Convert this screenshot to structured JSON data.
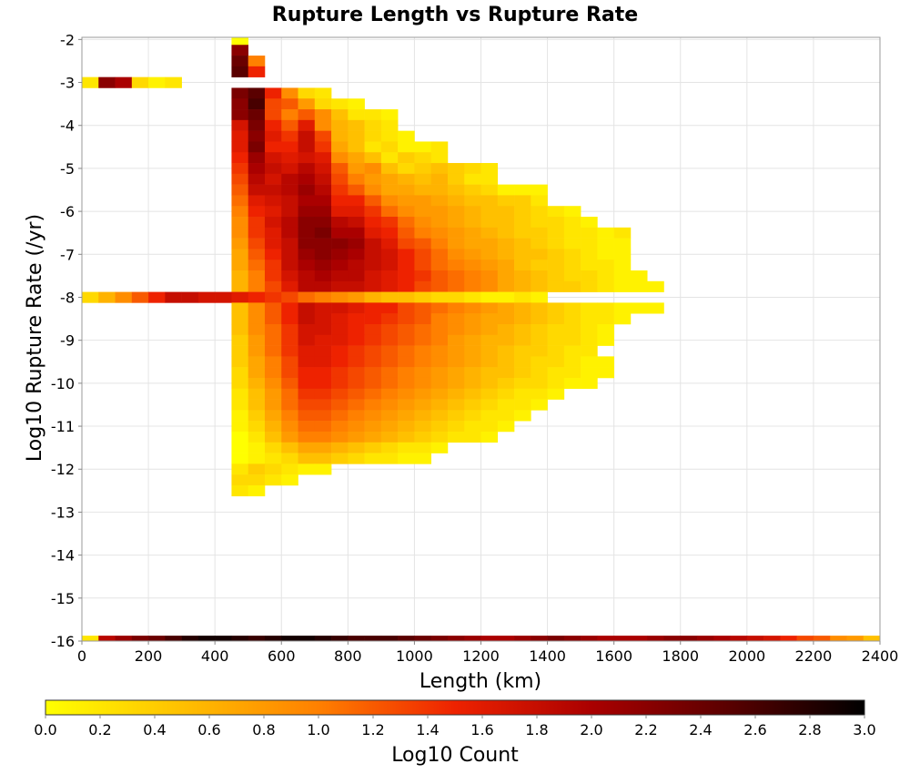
{
  "chart_data": {
    "type": "heatmap",
    "title": "Rupture Length vs Rupture Rate",
    "xlabel": "Length (km)",
    "ylabel": "Log10 Rupture Rate (/yr)",
    "xlim": [
      0,
      2400
    ],
    "ylim": [
      -16,
      -1.95
    ],
    "x_ticks": [
      "0",
      "200",
      "400",
      "600",
      "800",
      "1000",
      "1200",
      "1400",
      "1600",
      "1800",
      "2000",
      "2200",
      "2400"
    ],
    "y_ticks": [
      "-2",
      "-3",
      "-4",
      "-5",
      "-6",
      "-7",
      "-8",
      "-9",
      "-10",
      "-11",
      "-12",
      "-13",
      "-14",
      "-15",
      "-16"
    ],
    "grid": true,
    "bin_width_km": 50,
    "bin_height_log10": 0.25,
    "colorbar": {
      "label": "Log10 Count",
      "range": [
        0.0,
        3.0
      ],
      "ticks": [
        "0.0",
        "0.2",
        "0.4",
        "0.6",
        "0.8",
        "1.0",
        "1.2",
        "1.4",
        "1.6",
        "1.8",
        "2.0",
        "2.2",
        "2.4",
        "2.6",
        "2.8",
        "3.0"
      ],
      "colors": [
        "#ffff00",
        "#ffc000",
        "#ff8000",
        "#ee2200",
        "#aa0000",
        "#5a0000",
        "#000000"
      ],
      "placement": "bottom"
    },
    "rows": [
      {
        "y": -2.0,
        "x0": 450,
        "v": [
          0.0
        ]
      },
      {
        "y": -2.25,
        "x0": 450,
        "v": [
          2.2
        ]
      },
      {
        "y": -2.5,
        "x0": 450,
        "v": [
          2.4,
          1.0
        ]
      },
      {
        "y": -2.75,
        "x0": 450,
        "v": [
          2.5,
          1.5
        ]
      },
      {
        "y": -3.0,
        "x0": 0,
        "v": [
          0.2,
          2.2,
          2.0,
          0.3,
          0.1,
          0.2
        ]
      },
      {
        "y": -3.25,
        "x0": 450,
        "v": [
          2.3,
          2.5,
          1.5,
          0.9,
          0.3,
          0.2
        ]
      },
      {
        "y": -3.5,
        "x0": 450,
        "v": [
          2.2,
          2.6,
          1.3,
          1.2,
          0.8,
          0.3,
          0.2,
          0.1
        ]
      },
      {
        "y": -3.75,
        "x0": 450,
        "v": [
          2.2,
          2.4,
          1.3,
          1.0,
          1.2,
          0.9,
          0.5,
          0.2,
          0.2,
          0.1
        ]
      },
      {
        "y": -4.0,
        "x0": 450,
        "v": [
          1.7,
          2.3,
          1.5,
          1.2,
          1.6,
          0.9,
          0.6,
          0.5,
          0.3,
          0.2
        ]
      },
      {
        "y": -4.25,
        "x0": 450,
        "v": [
          1.6,
          2.2,
          1.6,
          1.4,
          1.8,
          1.3,
          0.6,
          0.5,
          0.3,
          0.2,
          0.1
        ]
      },
      {
        "y": -4.5,
        "x0": 450,
        "v": [
          1.6,
          2.3,
          1.5,
          1.5,
          1.8,
          1.4,
          0.7,
          0.5,
          0.2,
          0.3,
          0.1,
          0.1,
          0.2
        ]
      },
      {
        "y": -4.75,
        "x0": 450,
        "v": [
          1.5,
          2.1,
          1.7,
          1.6,
          1.7,
          1.6,
          0.9,
          0.7,
          0.5,
          0.2,
          0.4,
          0.3,
          0.2
        ]
      },
      {
        "y": -5.0,
        "x0": 450,
        "v": [
          1.4,
          2.0,
          1.8,
          1.7,
          1.9,
          1.7,
          1.2,
          0.8,
          0.9,
          0.5,
          0.3,
          0.4,
          0.5,
          0.4,
          0.3,
          0.2
        ]
      },
      {
        "y": -5.25,
        "x0": 450,
        "v": [
          1.3,
          1.9,
          1.7,
          1.9,
          2.0,
          1.8,
          1.3,
          1.0,
          0.8,
          0.7,
          0.6,
          0.5,
          0.6,
          0.4,
          0.2,
          0.2
        ]
      },
      {
        "y": -5.5,
        "x0": 450,
        "v": [
          1.2,
          1.8,
          1.8,
          1.9,
          2.1,
          1.9,
          1.4,
          1.2,
          0.9,
          0.7,
          0.7,
          0.6,
          0.6,
          0.5,
          0.4,
          0.3,
          0.1,
          0.1,
          0.1
        ]
      },
      {
        "y": -5.75,
        "x0": 450,
        "v": [
          1.1,
          1.6,
          1.7,
          1.8,
          2.0,
          2.0,
          1.5,
          1.5,
          1.2,
          0.9,
          0.8,
          0.8,
          0.7,
          0.6,
          0.5,
          0.5,
          0.4,
          0.4,
          0.2
        ]
      },
      {
        "y": -6.0,
        "x0": 450,
        "v": [
          1.0,
          1.5,
          1.6,
          1.8,
          2.1,
          2.1,
          1.6,
          1.6,
          1.4,
          1.1,
          0.9,
          0.8,
          0.8,
          0.7,
          0.6,
          0.5,
          0.5,
          0.4,
          0.3,
          0.2,
          0.1
        ]
      },
      {
        "y": -6.25,
        "x0": 450,
        "v": [
          0.9,
          1.4,
          1.7,
          1.9,
          2.2,
          2.2,
          1.9,
          1.8,
          1.5,
          1.4,
          1.1,
          0.9,
          0.8,
          0.7,
          0.6,
          0.5,
          0.5,
          0.4,
          0.3,
          0.3,
          0.2,
          0.1
        ]
      },
      {
        "y": -6.5,
        "x0": 450,
        "v": [
          0.9,
          1.4,
          1.6,
          1.9,
          2.2,
          2.3,
          2.0,
          2.0,
          1.6,
          1.5,
          1.2,
          1.0,
          0.9,
          0.8,
          0.7,
          0.6,
          0.5,
          0.4,
          0.4,
          0.3,
          0.2,
          0.2,
          0.1,
          0.2
        ]
      },
      {
        "y": -6.75,
        "x0": 450,
        "v": [
          0.8,
          1.3,
          1.6,
          1.8,
          2.2,
          2.2,
          2.2,
          2.1,
          1.8,
          1.6,
          1.3,
          1.2,
          1.0,
          0.8,
          0.7,
          0.7,
          0.6,
          0.5,
          0.4,
          0.3,
          0.2,
          0.2,
          0.1,
          0.1
        ]
      },
      {
        "y": -7.0,
        "x0": 450,
        "v": [
          0.7,
          1.2,
          1.5,
          1.8,
          2.1,
          2.2,
          2.1,
          2.0,
          1.8,
          1.7,
          1.5,
          1.3,
          1.1,
          0.9,
          0.8,
          0.7,
          0.6,
          0.5,
          0.5,
          0.4,
          0.3,
          0.2,
          0.1,
          0.1
        ]
      },
      {
        "y": -7.25,
        "x0": 450,
        "v": [
          0.7,
          1.1,
          1.4,
          1.8,
          2.0,
          2.1,
          2.0,
          1.9,
          1.8,
          1.7,
          1.5,
          1.3,
          1.1,
          1.0,
          0.9,
          0.8,
          0.7,
          0.5,
          0.4,
          0.4,
          0.3,
          0.2,
          0.2,
          0.1
        ]
      },
      {
        "y": -7.5,
        "x0": 450,
        "v": [
          0.6,
          1.0,
          1.4,
          1.7,
          1.9,
          2.0,
          1.9,
          1.9,
          1.7,
          1.6,
          1.5,
          1.4,
          1.2,
          1.1,
          1.0,
          0.9,
          0.7,
          0.6,
          0.5,
          0.4,
          0.3,
          0.3,
          0.2,
          0.1,
          0.1
        ]
      },
      {
        "y": -7.75,
        "x0": 450,
        "v": [
          0.6,
          1.0,
          1.3,
          1.6,
          1.9,
          1.9,
          1.8,
          1.8,
          1.7,
          1.6,
          1.5,
          1.3,
          1.2,
          1.1,
          1.0,
          0.9,
          0.7,
          0.6,
          0.5,
          0.4,
          0.4,
          0.3,
          0.2,
          0.1,
          0.1,
          0.1
        ]
      },
      {
        "y": -8.0,
        "x0": 0,
        "v": [
          0.3,
          0.6,
          0.9,
          1.2,
          1.5,
          1.8,
          1.8,
          1.7,
          1.7,
          1.6,
          1.5,
          1.4,
          1.3,
          1.1,
          1.0,
          0.9,
          0.8,
          0.6,
          0.5,
          0.5,
          0.4,
          0.3,
          0.3,
          0.2,
          0.1,
          0.1,
          0.2,
          0.1
        ]
      },
      {
        "y": -8.25,
        "x0": 450,
        "v": [
          0.5,
          0.9,
          1.2,
          1.5,
          1.8,
          1.7,
          1.7,
          1.6,
          1.5,
          1.5,
          1.3,
          1.2,
          1.1,
          1.0,
          0.9,
          0.8,
          0.7,
          0.6,
          0.5,
          0.4,
          0.3,
          0.2,
          0.2,
          0.1,
          0.1,
          0.1
        ]
      },
      {
        "y": -8.5,
        "x0": 450,
        "v": [
          0.5,
          0.9,
          1.2,
          1.5,
          1.8,
          1.7,
          1.6,
          1.5,
          1.5,
          1.4,
          1.3,
          1.2,
          1.0,
          0.9,
          0.8,
          0.7,
          0.7,
          0.6,
          0.5,
          0.4,
          0.3,
          0.2,
          0.2,
          0.1
        ]
      },
      {
        "y": -8.75,
        "x0": 450,
        "v": [
          0.5,
          0.9,
          1.1,
          1.4,
          1.7,
          1.7,
          1.6,
          1.5,
          1.4,
          1.3,
          1.2,
          1.1,
          1.0,
          0.9,
          0.8,
          0.7,
          0.6,
          0.5,
          0.4,
          0.3,
          0.3,
          0.2,
          0.1
        ]
      },
      {
        "y": -9.0,
        "x0": 450,
        "v": [
          0.4,
          0.8,
          1.1,
          1.4,
          1.7,
          1.6,
          1.6,
          1.5,
          1.4,
          1.3,
          1.2,
          1.1,
          1.0,
          0.8,
          0.7,
          0.6,
          0.6,
          0.5,
          0.4,
          0.3,
          0.3,
          0.2,
          0.1
        ]
      },
      {
        "y": -9.25,
        "x0": 450,
        "v": [
          0.4,
          0.8,
          1.1,
          1.4,
          1.6,
          1.6,
          1.5,
          1.4,
          1.3,
          1.2,
          1.1,
          1.0,
          0.9,
          0.8,
          0.7,
          0.6,
          0.5,
          0.4,
          0.4,
          0.3,
          0.2,
          0.2
        ]
      },
      {
        "y": -9.5,
        "x0": 450,
        "v": [
          0.4,
          0.7,
          1.0,
          1.3,
          1.6,
          1.6,
          1.5,
          1.4,
          1.3,
          1.2,
          1.1,
          1.0,
          0.9,
          0.8,
          0.7,
          0.6,
          0.5,
          0.4,
          0.3,
          0.3,
          0.2,
          0.1,
          0.1
        ]
      },
      {
        "y": -9.75,
        "x0": 450,
        "v": [
          0.3,
          0.7,
          1.0,
          1.3,
          1.5,
          1.5,
          1.4,
          1.3,
          1.2,
          1.1,
          1.0,
          0.9,
          0.8,
          0.7,
          0.6,
          0.5,
          0.5,
          0.4,
          0.3,
          0.2,
          0.2,
          0.1,
          0.1
        ]
      },
      {
        "y": -10.0,
        "x0": 450,
        "v": [
          0.3,
          0.6,
          0.9,
          1.2,
          1.5,
          1.5,
          1.4,
          1.3,
          1.2,
          1.1,
          1.0,
          0.9,
          0.8,
          0.7,
          0.6,
          0.5,
          0.4,
          0.3,
          0.3,
          0.2,
          0.1,
          0.1
        ]
      },
      {
        "y": -10.25,
        "x0": 450,
        "v": [
          0.2,
          0.5,
          0.8,
          1.1,
          1.4,
          1.4,
          1.3,
          1.2,
          1.1,
          1.0,
          0.9,
          0.8,
          0.7,
          0.6,
          0.5,
          0.4,
          0.3,
          0.2,
          0.2,
          0.1
        ]
      },
      {
        "y": -10.5,
        "x0": 450,
        "v": [
          0.2,
          0.5,
          0.8,
          1.1,
          1.3,
          1.3,
          1.2,
          1.1,
          1.0,
          0.9,
          0.8,
          0.7,
          0.6,
          0.5,
          0.4,
          0.3,
          0.2,
          0.2,
          0.1
        ]
      },
      {
        "y": -10.75,
        "x0": 450,
        "v": [
          0.1,
          0.4,
          0.7,
          1.0,
          1.2,
          1.2,
          1.1,
          1.0,
          0.9,
          0.8,
          0.7,
          0.6,
          0.5,
          0.4,
          0.3,
          0.2,
          0.2,
          0.1
        ]
      },
      {
        "y": -11.0,
        "x0": 450,
        "v": [
          0.1,
          0.3,
          0.6,
          0.9,
          1.1,
          1.1,
          1.0,
          0.9,
          0.8,
          0.7,
          0.6,
          0.5,
          0.4,
          0.3,
          0.2,
          0.2,
          0.1
        ]
      },
      {
        "y": -11.25,
        "x0": 450,
        "v": [
          0.0,
          0.2,
          0.5,
          0.8,
          1.0,
          1.0,
          0.9,
          0.8,
          0.7,
          0.6,
          0.5,
          0.4,
          0.3,
          0.2,
          0.2,
          0.1
        ]
      },
      {
        "y": -11.5,
        "x0": 450,
        "v": [
          0.0,
          0.1,
          0.3,
          0.5,
          0.7,
          0.7,
          0.6,
          0.5,
          0.4,
          0.3,
          0.2,
          0.2,
          0.1
        ]
      },
      {
        "y": -11.75,
        "x0": 450,
        "v": [
          0.0,
          0.1,
          0.2,
          0.3,
          0.5,
          0.5,
          0.4,
          0.3,
          0.2,
          0.2,
          0.1,
          0.1
        ]
      },
      {
        "y": -12.0,
        "x0": 450,
        "v": [
          0.2,
          0.4,
          0.3,
          0.2,
          0.1,
          0.1
        ]
      },
      {
        "y": -12.25,
        "x0": 450,
        "v": [
          0.3,
          0.3,
          0.2,
          0.1
        ]
      },
      {
        "y": -12.5,
        "x0": 450,
        "v": [
          0.2,
          0.1
        ]
      }
    ],
    "bottom_row": {
      "y": -16.0,
      "x0": 0,
      "v": [
        0.2,
        1.9,
        2.1,
        2.3,
        2.4,
        2.6,
        2.8,
        2.9,
        2.9,
        2.8,
        2.7,
        2.8,
        2.9,
        2.9,
        2.8,
        2.7,
        2.6,
        2.6,
        2.6,
        2.5,
        2.4,
        2.3,
        2.2,
        2.1,
        2.0,
        2.0,
        2.1,
        2.2,
        2.3,
        2.2,
        2.1,
        2.0,
        2.0,
        2.0,
        2.1,
        2.2,
        2.2,
        2.1,
        2.0,
        1.9,
        1.8,
        1.7,
        1.5,
        1.3,
        1.2,
        0.9,
        0.8,
        0.5
      ]
    }
  }
}
